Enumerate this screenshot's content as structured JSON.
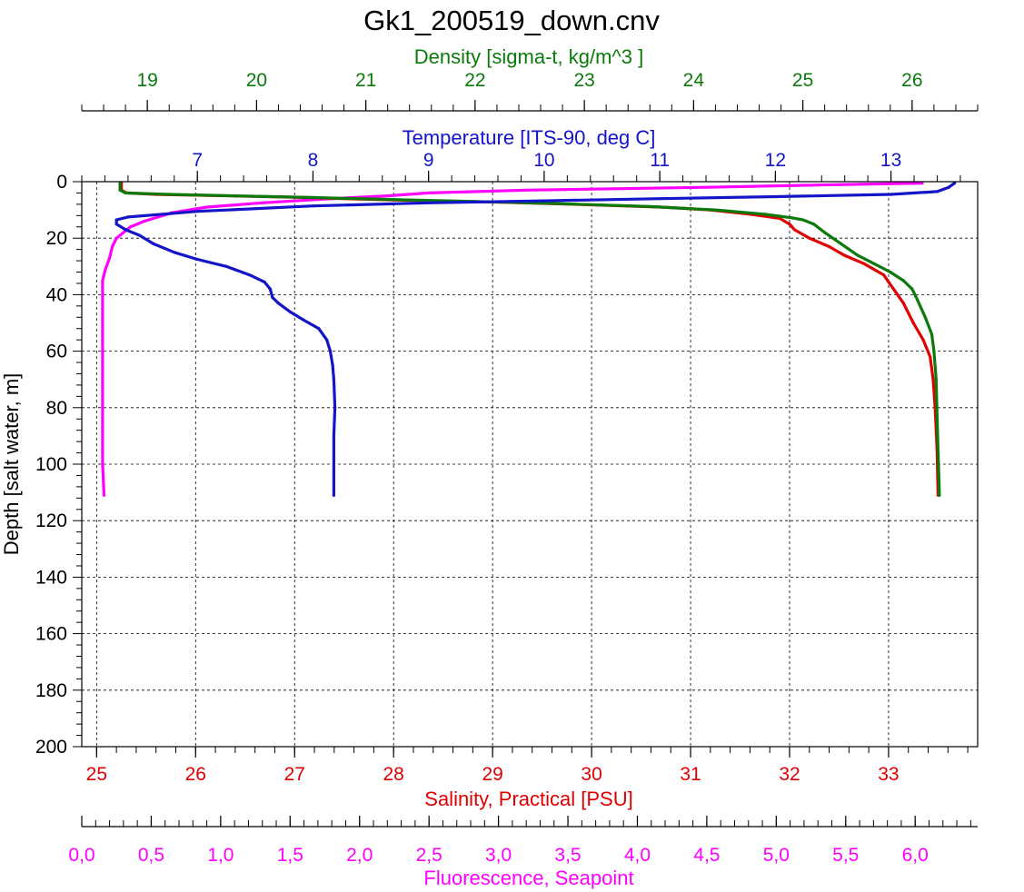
{
  "chart_data": {
    "type": "line",
    "title": "Gk1_200519_down.cnv",
    "grid": true,
    "colors": {
      "density": "#0b7a0b",
      "temperature": "#1414c8",
      "salinity": "#e00000",
      "fluorescence": "#ff00ff",
      "frame": "#000000"
    },
    "y_axis": {
      "label": "Depth [salt water, m]",
      "range": [
        0,
        200
      ],
      "inverted": true,
      "ticks": [
        "0",
        "20",
        "40",
        "60",
        "80",
        "100",
        "120",
        "140",
        "160",
        "180",
        "200"
      ]
    },
    "x_axes": {
      "density": {
        "label": "Density [sigma-t, kg/m^3 ]",
        "position": "top",
        "range": [
          18.4,
          26.6
        ],
        "tick_values": [
          19,
          20,
          21,
          22,
          23,
          24,
          25,
          26
        ],
        "tick_labels": [
          "19",
          "20",
          "21",
          "22",
          "23",
          "24",
          "25",
          "26"
        ]
      },
      "temperature": {
        "label": "Temperature [ITS-90, deg C]",
        "position": "top",
        "range": [
          6.0,
          13.75
        ],
        "tick_values": [
          7,
          8,
          9,
          10,
          11,
          12,
          13
        ],
        "tick_labels": [
          "7",
          "8",
          "9",
          "10",
          "11",
          "12",
          "13"
        ]
      },
      "salinity": {
        "label": "Salinity, Practical [PSU]",
        "position": "bottom",
        "range": [
          24.85,
          33.9
        ],
        "tick_values": [
          25,
          26,
          27,
          28,
          29,
          30,
          31,
          32,
          33
        ],
        "tick_labels": [
          "25",
          "26",
          "27",
          "28",
          "29",
          "30",
          "31",
          "32",
          "33"
        ]
      },
      "fluorescence": {
        "label": "Fluorescence, Seapoint",
        "position": "bottom",
        "range": [
          0.0,
          6.45
        ],
        "tick_values": [
          0.0,
          0.5,
          1.0,
          1.5,
          2.0,
          2.5,
          3.0,
          3.5,
          4.0,
          4.5,
          5.0,
          5.5,
          6.0
        ],
        "tick_labels": [
          "0,0",
          "0,5",
          "1,0",
          "1,5",
          "2,0",
          "2,5",
          "3,0",
          "3,5",
          "4,0",
          "4,5",
          "5,0",
          "5,5",
          "6,0"
        ]
      }
    },
    "series": [
      {
        "axis": "salinity",
        "points": [
          [
            25.25,
            0.5
          ],
          [
            25.25,
            3
          ],
          [
            25.3,
            4
          ],
          [
            25.6,
            4.5
          ],
          [
            26.0,
            4.8
          ],
          [
            27.0,
            5.5
          ],
          [
            28.0,
            6.5
          ],
          [
            29.0,
            7.2
          ],
          [
            30.0,
            8.2
          ],
          [
            30.7,
            9.0
          ],
          [
            31.2,
            10.0
          ],
          [
            31.6,
            11.5
          ],
          [
            31.9,
            13.0
          ],
          [
            32.0,
            15.0
          ],
          [
            32.05,
            17.0
          ],
          [
            32.2,
            20.0
          ],
          [
            32.4,
            23.0
          ],
          [
            32.55,
            26.0
          ],
          [
            32.75,
            29.0
          ],
          [
            32.95,
            33.0
          ],
          [
            33.05,
            38.0
          ],
          [
            33.15,
            43.0
          ],
          [
            33.25,
            50.0
          ],
          [
            33.35,
            56.0
          ],
          [
            33.42,
            62.0
          ],
          [
            33.45,
            70.0
          ],
          [
            33.47,
            80.0
          ],
          [
            33.49,
            95.0
          ],
          [
            33.5,
            111.0
          ]
        ]
      },
      {
        "axis": "density",
        "points": [
          [
            18.75,
            0.5
          ],
          [
            18.75,
            3
          ],
          [
            18.8,
            4
          ],
          [
            19.2,
            4.5
          ],
          [
            19.8,
            5.0
          ],
          [
            20.5,
            5.6
          ],
          [
            21.3,
            6.4
          ],
          [
            22.0,
            7.0
          ],
          [
            22.8,
            7.8
          ],
          [
            23.6,
            8.8
          ],
          [
            24.2,
            10.0
          ],
          [
            24.65,
            11.5
          ],
          [
            24.9,
            12.8
          ],
          [
            25.0,
            13.5
          ],
          [
            25.1,
            15.0
          ],
          [
            25.2,
            18.0
          ],
          [
            25.35,
            22.0
          ],
          [
            25.5,
            26.0
          ],
          [
            25.65,
            29.0
          ],
          [
            25.8,
            32.0
          ],
          [
            25.92,
            35.0
          ],
          [
            26.0,
            38.0
          ],
          [
            26.05,
            42.0
          ],
          [
            26.12,
            48.0
          ],
          [
            26.18,
            54.0
          ],
          [
            26.2,
            60.0
          ],
          [
            26.22,
            70.0
          ],
          [
            26.23,
            85.0
          ],
          [
            26.25,
            111.0
          ]
        ]
      },
      {
        "axis": "temperature",
        "points": [
          [
            13.55,
            0.5
          ],
          [
            13.5,
            2
          ],
          [
            13.4,
            3.5
          ],
          [
            13.0,
            4.5
          ],
          [
            12.0,
            5.3
          ],
          [
            11.0,
            6.0
          ],
          [
            10.0,
            6.8
          ],
          [
            9.0,
            7.5
          ],
          [
            8.0,
            8.6
          ],
          [
            7.0,
            10.5
          ],
          [
            6.7,
            11.5
          ],
          [
            6.4,
            12.5
          ],
          [
            6.3,
            13.5
          ],
          [
            6.3,
            15.0
          ],
          [
            6.38,
            17.0
          ],
          [
            6.5,
            19.0
          ],
          [
            6.62,
            22.0
          ],
          [
            6.8,
            25.0
          ],
          [
            7.0,
            27.5
          ],
          [
            7.25,
            30.0
          ],
          [
            7.45,
            33.0
          ],
          [
            7.58,
            35.5
          ],
          [
            7.63,
            38.0
          ],
          [
            7.65,
            41.0
          ],
          [
            7.7,
            43.0
          ],
          [
            7.8,
            46.0
          ],
          [
            7.92,
            49.0
          ],
          [
            8.05,
            52.0
          ],
          [
            8.12,
            56.0
          ],
          [
            8.15,
            60.0
          ],
          [
            8.17,
            65.0
          ],
          [
            8.18,
            70.0
          ],
          [
            8.19,
            80.0
          ],
          [
            8.18,
            90.0
          ],
          [
            8.18,
            111.0
          ]
        ]
      },
      {
        "axis": "fluorescence",
        "points": [
          [
            6.05,
            0.5
          ],
          [
            5.3,
            1.2
          ],
          [
            4.5,
            2.0
          ],
          [
            3.2,
            3.0
          ],
          [
            2.5,
            4.0
          ],
          [
            2.2,
            5.0
          ],
          [
            1.8,
            6.0
          ],
          [
            1.3,
            7.5
          ],
          [
            0.9,
            9.0
          ],
          [
            0.65,
            11.0
          ],
          [
            0.55,
            12.5
          ],
          [
            0.45,
            14.0
          ],
          [
            0.35,
            16.0
          ],
          [
            0.3,
            18.0
          ],
          [
            0.25,
            20.0
          ],
          [
            0.22,
            23.0
          ],
          [
            0.2,
            27.0
          ],
          [
            0.17,
            31.0
          ],
          [
            0.15,
            35.0
          ],
          [
            0.15,
            45.0
          ],
          [
            0.15,
            60.0
          ],
          [
            0.15,
            80.0
          ],
          [
            0.15,
            100.0
          ],
          [
            0.16,
            111.0
          ]
        ]
      }
    ]
  }
}
